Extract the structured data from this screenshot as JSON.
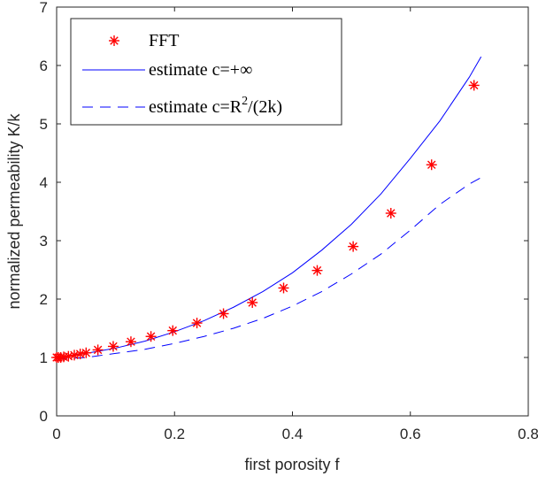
{
  "chart_data": {
    "type": "line",
    "xlabel": "first porosity f",
    "ylabel": "normalized permeability K/k",
    "xlim": [
      0,
      0.8
    ],
    "ylim": [
      0,
      7
    ],
    "xticks": [
      0,
      0.2,
      0.4,
      0.6,
      0.8
    ],
    "xtick_labels": [
      "0",
      "0.2",
      "0.4",
      "0.6",
      "0.8"
    ],
    "yticks": [
      0,
      1,
      2,
      3,
      4,
      5,
      6,
      7
    ],
    "ytick_labels": [
      "0",
      "1",
      "2",
      "3",
      "4",
      "5",
      "6",
      "7"
    ],
    "grid": false,
    "legend_position": "top-left",
    "series": [
      {
        "name": "FFT",
        "style": "markers",
        "marker": "asterisk",
        "color": "#ff0000",
        "x": [
          0.0,
          0.003,
          0.007,
          0.012,
          0.02,
          0.03,
          0.04,
          0.05,
          0.07,
          0.096,
          0.126,
          0.16,
          0.197,
          0.238,
          0.283,
          0.332,
          0.385,
          0.442,
          0.503,
          0.567,
          0.636,
          0.708
        ],
        "y": [
          1.0,
          1.0,
          1.0,
          1.01,
          1.02,
          1.04,
          1.06,
          1.08,
          1.13,
          1.19,
          1.27,
          1.36,
          1.46,
          1.59,
          1.75,
          1.94,
          2.19,
          2.49,
          2.9,
          3.47,
          4.3,
          5.66
        ]
      },
      {
        "name": "estimate c=+∞",
        "style": "solid",
        "color": "#0000ff",
        "x": [
          0.0,
          0.05,
          0.1,
          0.15,
          0.2,
          0.25,
          0.3,
          0.35,
          0.4,
          0.45,
          0.5,
          0.55,
          0.6,
          0.65,
          0.7,
          0.72
        ],
        "y": [
          1.0,
          1.07,
          1.16,
          1.28,
          1.44,
          1.63,
          1.86,
          2.13,
          2.45,
          2.84,
          3.28,
          3.8,
          4.41,
          5.05,
          5.8,
          6.15
        ]
      },
      {
        "name": "estimate c=R²/(2k)",
        "style": "dashed",
        "color": "#0000ff",
        "x": [
          0.0,
          0.05,
          0.1,
          0.15,
          0.2,
          0.25,
          0.3,
          0.35,
          0.4,
          0.45,
          0.5,
          0.55,
          0.6,
          0.65,
          0.7,
          0.72
        ],
        "y": [
          0.97,
          1.0,
          1.07,
          1.14,
          1.24,
          1.36,
          1.5,
          1.67,
          1.88,
          2.13,
          2.43,
          2.77,
          3.18,
          3.62,
          3.97,
          4.08
        ]
      }
    ]
  },
  "legend": {
    "fft_label": "FFT",
    "solid_label": "estimate c=+∞",
    "dashed_label_base": "estimate c=R",
    "dashed_label_sup": "2",
    "dashed_label_tail": "/(2k)"
  }
}
